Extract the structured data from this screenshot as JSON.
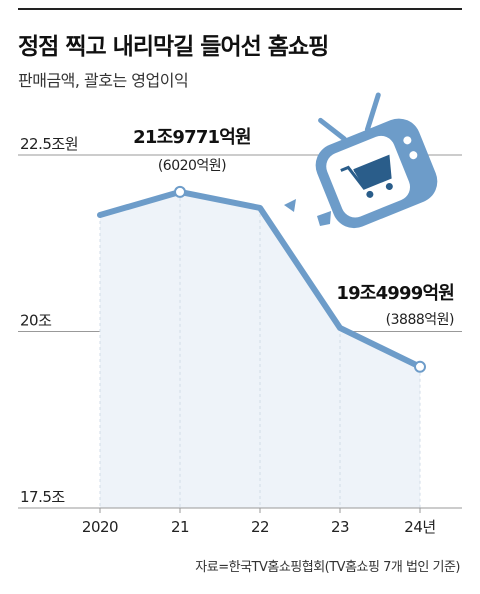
{
  "header": {
    "title": "정점 찍고 내리막길 들어선 홈쇼핑",
    "subtitle": "판매금액, 괄호는 영업이익"
  },
  "source": "자료=한국TV홈쇼핑협회(TV홈쇼핑 7개 법인 기준)",
  "icon": "tv-shopping-cart-icon",
  "colors": {
    "line": "#6d9cc9",
    "area": "#eef3f9",
    "icon": "#6d9cc9",
    "grid": "#999999"
  },
  "chart_data": {
    "type": "area",
    "categories": [
      "2020",
      "21",
      "22",
      "23",
      "24년"
    ],
    "series": [
      {
        "values": [
          21.65,
          21.9771,
          21.75,
          20.05,
          19.4999
        ]
      }
    ],
    "ylim": [
      17.5,
      22.5
    ],
    "yticks": [
      {
        "value": 22.5,
        "label": "22.5조원"
      },
      {
        "value": 20,
        "label": "20조"
      },
      {
        "value": 17.5,
        "label": "17.5조"
      }
    ],
    "annotations": [
      {
        "index": 1,
        "label": "21조9771억원",
        "sub": "(6020억원)"
      },
      {
        "index": 4,
        "label": "19조4999억원",
        "sub": "(3888억원)"
      }
    ]
  }
}
